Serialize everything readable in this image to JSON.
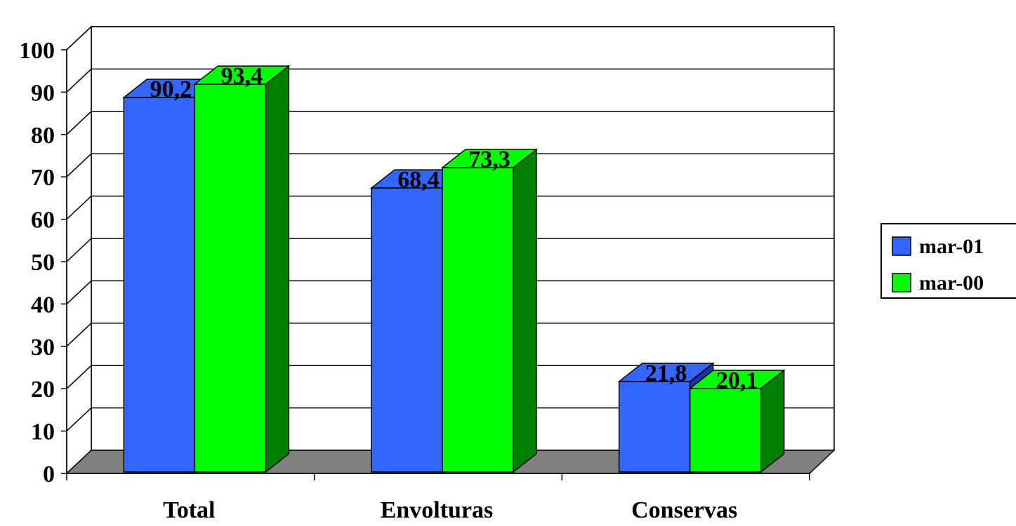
{
  "chart_data": {
    "type": "bar",
    "title": "",
    "xlabel": "",
    "ylabel": "",
    "categories": [
      "Total",
      "Envolturas",
      "Conservas"
    ],
    "series": [
      {
        "name": "mar-01",
        "values": [
          90.2,
          68.4,
          21.8
        ],
        "labels": [
          "90,2",
          "68,4",
          "21,8"
        ],
        "color": "#3366ff",
        "side_color": "#1a33a6"
      },
      {
        "name": "mar-00",
        "values": [
          93.4,
          73.3,
          20.1
        ],
        "labels": [
          "93,4",
          "73,3",
          "20,1"
        ],
        "color": "#00ff00",
        "side_color": "#008000"
      }
    ],
    "ylim": [
      0,
      100
    ],
    "yticks": [
      "0",
      "10",
      "20",
      "30",
      "40",
      "50",
      "60",
      "70",
      "80",
      "90",
      "100"
    ],
    "grid": true,
    "legend": "right",
    "floor_color": "#808080",
    "style": "3d-clustered-column"
  }
}
